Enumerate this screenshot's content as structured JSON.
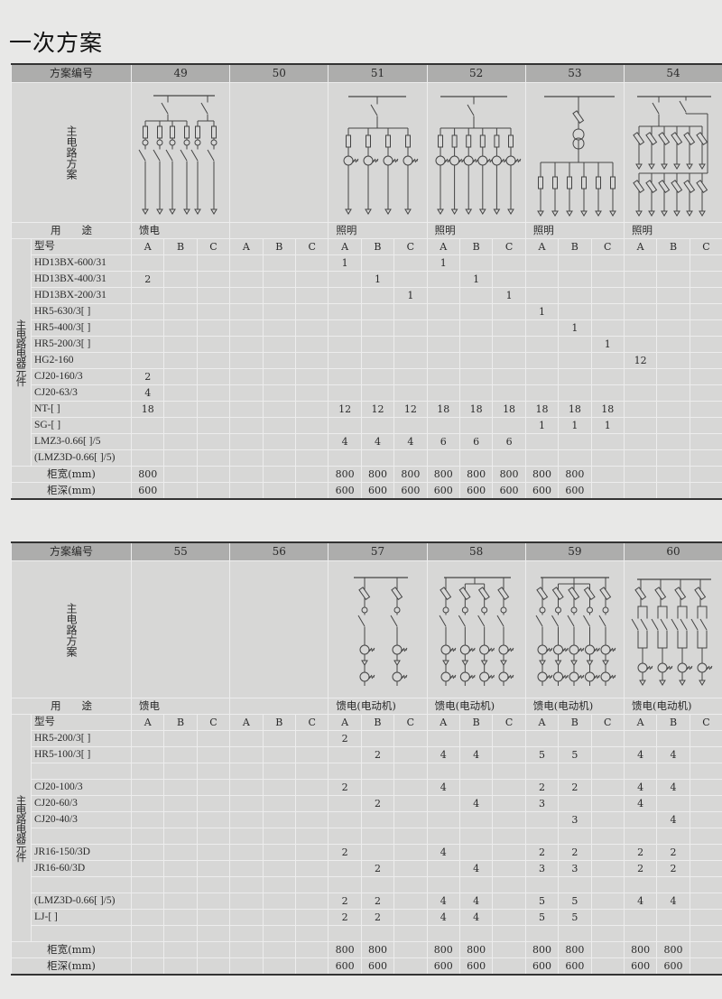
{
  "title": "一次方案",
  "tables": [
    {
      "header_label": "方案编号",
      "diagram_label": "主电路方案",
      "usage_label": "用　　途",
      "model_label": "型号",
      "group_label": "主电路电器元件",
      "sub_columns": [
        "A",
        "B",
        "C"
      ],
      "schemes": [
        {
          "no": "49",
          "usage": "馈电"
        },
        {
          "no": "50",
          "usage": ""
        },
        {
          "no": "51",
          "usage": "照明"
        },
        {
          "no": "52",
          "usage": "照明"
        },
        {
          "no": "53",
          "usage": "照明"
        },
        {
          "no": "54",
          "usage": "照明"
        }
      ],
      "rows": [
        {
          "model": "HD13BX-600/31",
          "values": [
            "",
            "",
            "",
            "",
            "",
            "",
            "1",
            "",
            "",
            "1",
            "",
            "",
            "",
            "",
            "",
            "",
            "",
            ""
          ]
        },
        {
          "model": "HD13BX-400/31",
          "values": [
            "2",
            "",
            "",
            "",
            "",
            "",
            "",
            "1",
            "",
            "",
            "1",
            "",
            "",
            "",
            "",
            "",
            "",
            ""
          ]
        },
        {
          "model": "HD13BX-200/31",
          "values": [
            "",
            "",
            "",
            "",
            "",
            "",
            "",
            "",
            "1",
            "",
            "",
            "1",
            "",
            "",
            "",
            "",
            "",
            ""
          ]
        },
        {
          "model": "HR5-630/3[ ]",
          "values": [
            "",
            "",
            "",
            "",
            "",
            "",
            "",
            "",
            "",
            "",
            "",
            "",
            "1",
            "",
            "",
            "",
            "",
            ""
          ]
        },
        {
          "model": "HR5-400/3[ ]",
          "values": [
            "",
            "",
            "",
            "",
            "",
            "",
            "",
            "",
            "",
            "",
            "",
            "",
            "",
            "1",
            "",
            "",
            "",
            ""
          ]
        },
        {
          "model": "HR5-200/3[ ]",
          "values": [
            "",
            "",
            "",
            "",
            "",
            "",
            "",
            "",
            "",
            "",
            "",
            "",
            "",
            "",
            "1",
            "",
            "",
            ""
          ]
        },
        {
          "model": "HG2-160",
          "values": [
            "",
            "",
            "",
            "",
            "",
            "",
            "",
            "",
            "",
            "",
            "",
            "",
            "",
            "",
            "",
            "12",
            "",
            ""
          ]
        },
        {
          "model": "CJ20-160/3",
          "values": [
            "2",
            "",
            "",
            "",
            "",
            "",
            "",
            "",
            "",
            "",
            "",
            "",
            "",
            "",
            "",
            "",
            "",
            ""
          ]
        },
        {
          "model": "CJ20-63/3",
          "values": [
            "4",
            "",
            "",
            "",
            "",
            "",
            "",
            "",
            "",
            "",
            "",
            "",
            "",
            "",
            "",
            "",
            "",
            ""
          ]
        },
        {
          "model": "NT-[ ]",
          "values": [
            "18",
            "",
            "",
            "",
            "",
            "",
            "12",
            "12",
            "12",
            "18",
            "18",
            "18",
            "18",
            "18",
            "18",
            "",
            "",
            ""
          ]
        },
        {
          "model": "SG-[ ]",
          "values": [
            "",
            "",
            "",
            "",
            "",
            "",
            "",
            "",
            "",
            "",
            "",
            "",
            "1",
            "1",
            "1",
            "",
            "",
            ""
          ]
        },
        {
          "model": "LMZ3-0.66[ ]/5",
          "values": [
            "",
            "",
            "",
            "",
            "",
            "",
            "4",
            "4",
            "4",
            "6",
            "6",
            "6",
            "",
            "",
            "",
            "",
            "",
            ""
          ]
        },
        {
          "model": "(LMZ3D-0.66[ ]/5)",
          "values": [
            "",
            "",
            "",
            "",
            "",
            "",
            "",
            "",
            "",
            "",
            "",
            "",
            "",
            "",
            "",
            "",
            "",
            ""
          ]
        }
      ],
      "width_label": "柜宽(mm)",
      "width_values": [
        "800",
        "",
        "",
        "",
        "",
        "",
        "800",
        "800",
        "800",
        "800",
        "800",
        "800",
        "800",
        "800",
        "",
        "",
        "",
        ""
      ],
      "depth_label": "柜深(mm)",
      "depth_values": [
        "600",
        "",
        "",
        "",
        "",
        "",
        "600",
        "600",
        "600",
        "600",
        "600",
        "600",
        "600",
        "600",
        "",
        "",
        "",
        ""
      ]
    },
    {
      "header_label": "方案编号",
      "diagram_label": "主电路方案",
      "usage_label": "用　　途",
      "model_label": "型号",
      "group_label": "主电路电器元件",
      "sub_columns": [
        "A",
        "B",
        "C"
      ],
      "schemes": [
        {
          "no": "55",
          "usage": "馈电"
        },
        {
          "no": "56",
          "usage": ""
        },
        {
          "no": "57",
          "usage": "馈电(电动机)"
        },
        {
          "no": "58",
          "usage": "馈电(电动机)"
        },
        {
          "no": "59",
          "usage": "馈电(电动机)"
        },
        {
          "no": "60",
          "usage": "馈电(电动机)"
        }
      ],
      "rows": [
        {
          "model": "HR5-200/3[ ]",
          "values": [
            "",
            "",
            "",
            "",
            "",
            "",
            "2",
            "",
            "",
            "",
            "",
            "",
            "",
            "",
            "",
            "",
            "",
            ""
          ]
        },
        {
          "model": "HR5-100/3[ ]",
          "values": [
            "",
            "",
            "",
            "",
            "",
            "",
            "",
            "2",
            "",
            "4",
            "4",
            "",
            "5",
            "5",
            "",
            "4",
            "4",
            ""
          ]
        },
        {
          "model": "",
          "values": [
            "",
            "",
            "",
            "",
            "",
            "",
            "",
            "",
            "",
            "",
            "",
            "",
            "",
            "",
            "",
            "",
            "",
            ""
          ]
        },
        {
          "model": "CJ20-100/3",
          "values": [
            "",
            "",
            "",
            "",
            "",
            "",
            "2",
            "",
            "",
            "4",
            "",
            "",
            "2",
            "2",
            "",
            "4",
            "4",
            ""
          ]
        },
        {
          "model": "CJ20-60/3",
          "values": [
            "",
            "",
            "",
            "",
            "",
            "",
            "",
            "2",
            "",
            "",
            "4",
            "",
            "3",
            "",
            "",
            "4",
            "",
            ""
          ]
        },
        {
          "model": "CJ20-40/3",
          "values": [
            "",
            "",
            "",
            "",
            "",
            "",
            "",
            "",
            "",
            "",
            "",
            "",
            "",
            "3",
            "",
            "",
            "4",
            ""
          ]
        },
        {
          "model": "",
          "values": [
            "",
            "",
            "",
            "",
            "",
            "",
            "",
            "",
            "",
            "",
            "",
            "",
            "",
            "",
            "",
            "",
            "",
            ""
          ]
        },
        {
          "model": "JR16-150/3D",
          "values": [
            "",
            "",
            "",
            "",
            "",
            "",
            "2",
            "",
            "",
            "4",
            "",
            "",
            "2",
            "2",
            "",
            "2",
            "2",
            ""
          ]
        },
        {
          "model": "JR16-60/3D",
          "values": [
            "",
            "",
            "",
            "",
            "",
            "",
            "",
            "2",
            "",
            "",
            "4",
            "",
            "3",
            "3",
            "",
            "2",
            "2",
            ""
          ]
        },
        {
          "model": "",
          "values": [
            "",
            "",
            "",
            "",
            "",
            "",
            "",
            "",
            "",
            "",
            "",
            "",
            "",
            "",
            "",
            "",
            "",
            ""
          ]
        },
        {
          "model": "(LMZ3D-0.66[ ]/5)",
          "values": [
            "",
            "",
            "",
            "",
            "",
            "",
            "2",
            "2",
            "",
            "4",
            "4",
            "",
            "5",
            "5",
            "",
            "4",
            "4",
            ""
          ]
        },
        {
          "model": "LJ-[ ]",
          "values": [
            "",
            "",
            "",
            "",
            "",
            "",
            "2",
            "2",
            "",
            "4",
            "4",
            "",
            "5",
            "5",
            "",
            "",
            "",
            ""
          ]
        },
        {
          "model": "",
          "values": [
            "",
            "",
            "",
            "",
            "",
            "",
            "",
            "",
            "",
            "",
            "",
            "",
            "",
            "",
            "",
            "",
            "",
            ""
          ]
        }
      ],
      "width_label": "柜宽(mm)",
      "width_values": [
        "",
        "",
        "",
        "",
        "",
        "",
        "800",
        "800",
        "",
        "800",
        "800",
        "",
        "800",
        "800",
        "",
        "800",
        "800",
        ""
      ],
      "depth_label": "柜深(mm)",
      "depth_values": [
        "",
        "",
        "",
        "",
        "",
        "",
        "600",
        "600",
        "",
        "600",
        "600",
        "",
        "600",
        "600",
        "",
        "600",
        "600",
        ""
      ]
    }
  ]
}
